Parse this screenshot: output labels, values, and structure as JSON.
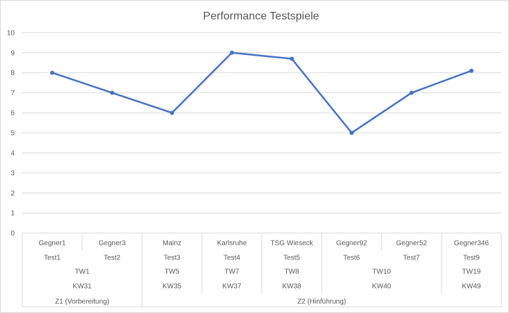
{
  "chart_data": {
    "type": "line",
    "title": "Performance Testspiele",
    "ylim": [
      0,
      10
    ],
    "y_ticks": [
      "0",
      "1",
      "2",
      "3",
      "4",
      "5",
      "6",
      "7",
      "8",
      "9",
      "10"
    ],
    "grid": true,
    "series_color": "#4472c4",
    "categories": {
      "opponent": [
        "Gegner1",
        "Gegner3",
        "Mainz",
        "Karlsruhe",
        "TSG Wieseck",
        "Gegner92",
        "Gegner52",
        "Gegner346"
      ],
      "test": [
        "Test1",
        "Test2",
        "Test3",
        "Test4",
        "Test5",
        "Test6",
        "Test7",
        "Test9"
      ],
      "tw_groups": [
        {
          "label": "TW1",
          "start": 0,
          "count": 2
        },
        {
          "label": "TW5",
          "start": 2,
          "count": 1
        },
        {
          "label": "TW7",
          "start": 3,
          "count": 1
        },
        {
          "label": "TW8",
          "start": 4,
          "count": 1
        },
        {
          "label": "TW10",
          "start": 5,
          "count": 2
        },
        {
          "label": "TW19",
          "start": 7,
          "count": 1
        }
      ],
      "kw_groups": [
        {
          "label": "KW31",
          "start": 0,
          "count": 2
        },
        {
          "label": "KW35",
          "start": 2,
          "count": 1
        },
        {
          "label": "KW37",
          "start": 3,
          "count": 1
        },
        {
          "label": "KW38",
          "start": 4,
          "count": 1
        },
        {
          "label": "KW40",
          "start": 5,
          "count": 2
        },
        {
          "label": "KW49",
          "start": 7,
          "count": 1
        }
      ],
      "phase_groups": [
        {
          "label": "Z1 (Vorbereitung)",
          "start": 0,
          "count": 2
        },
        {
          "label": "Z2 (Hinführung)",
          "start": 2,
          "count": 6
        }
      ]
    },
    "series": [
      {
        "values": [
          8.0,
          7.0,
          6.0,
          9.0,
          8.7,
          5.0,
          7.0,
          8.1
        ]
      }
    ]
  }
}
